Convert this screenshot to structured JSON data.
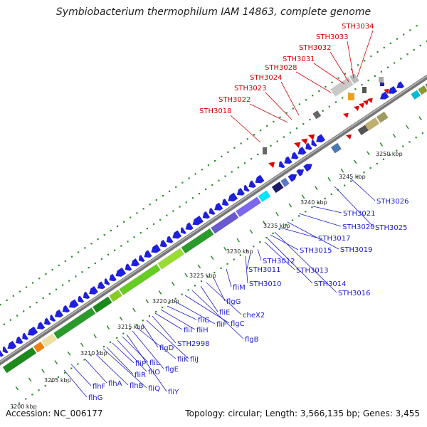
{
  "title": "Symbiobacterium thermophilum IAM 14863, complete genome",
  "footer": {
    "accession": "Accession: NC_006177",
    "summary": "Topology: circular; Length: 3,566,135 bp; Genes: 3,455"
  },
  "colors": {
    "backbone": "#8a8a8a",
    "forward_gene": "#1f1fe0",
    "reverse_gene": "#1a1ae8",
    "rna": "#e00000",
    "label_blue": "#1a1ad0",
    "label_red": "#d40000",
    "tick_green": "#2a8a2a"
  },
  "scale_labels": [
    "3200 kbp",
    "3205 kbp",
    "3210 kbp",
    "3215 kbp",
    "3220 kbp",
    "3225 kbp",
    "3230 kbp",
    "3235 kbp",
    "3240 kbp",
    "3245 kbp",
    "3250 kbp"
  ],
  "red_labels": [
    "STH3018",
    "STH3022",
    "STH3023",
    "STH3024",
    "STH3028",
    "STH3031",
    "STH3032",
    "STH3033",
    "STH3034"
  ],
  "blue_labels": [
    "flhG",
    "flhF",
    "flhA",
    "flhB",
    "fliQ",
    "fliR",
    "fliP",
    "fliO",
    "fliL",
    "fliY",
    "flgE",
    "fliK",
    "flgD",
    "fliJ",
    "STH2998",
    "fliI",
    "fliH",
    "fliG",
    "fliF",
    "flgC",
    "flgB",
    "fliE",
    "cheX2",
    "flgG",
    "fliM",
    "STH3010",
    "STH3011",
    "STH3012",
    "STH3013",
    "STH3014",
    "STH3015",
    "STH3016",
    "STH3017",
    "STH3019",
    "STH3020",
    "STH3021",
    "STH3025",
    "STH3026"
  ]
}
